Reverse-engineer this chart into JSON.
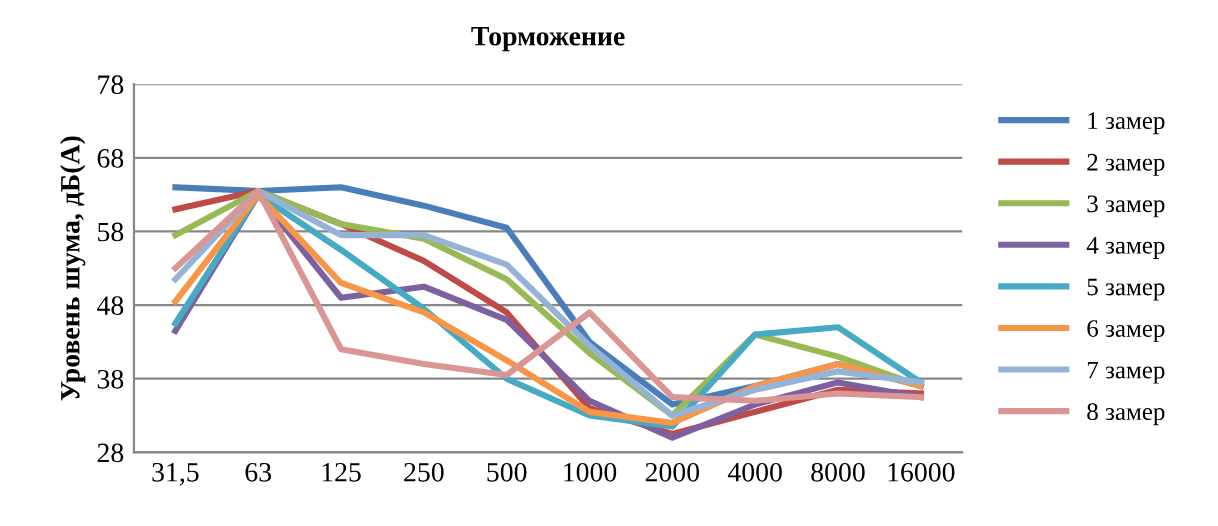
{
  "chart_data": {
    "type": "line",
    "title": "Торможение",
    "ylabel": "Уровень шума, дБ(А)",
    "categories": [
      "31,5",
      "63",
      "125",
      "250",
      "500",
      "1000",
      "2000",
      "4000",
      "8000",
      "16000"
    ],
    "ylim": [
      28,
      78
    ],
    "yticks": [
      28,
      38,
      48,
      58,
      68,
      78
    ],
    "grid": "y",
    "legend": "right",
    "marker": "none",
    "line_style": "solid",
    "series": [
      {
        "name": "1 замер",
        "color": "#4a7ebb",
        "values": [
          64,
          63.5,
          64,
          61.5,
          58.5,
          43,
          34.5,
          37,
          40,
          37
        ]
      },
      {
        "name": "2 замер",
        "color": "#be4b48",
        "values": [
          61,
          63.5,
          59,
          54,
          47,
          34,
          30.5,
          33.5,
          36.5,
          36
        ]
      },
      {
        "name": "3 замер",
        "color": "#98b954",
        "values": [
          57.5,
          63.5,
          59,
          57,
          51.5,
          41.5,
          33,
          44,
          41,
          37
        ]
      },
      {
        "name": "4 замер",
        "color": "#7d60a0",
        "values": [
          44.5,
          63,
          49,
          50.5,
          46,
          35,
          30,
          34.5,
          37.5,
          35.5
        ]
      },
      {
        "name": "5 замер",
        "color": "#46aac5",
        "values": [
          45.5,
          63,
          55.5,
          47.5,
          38,
          33,
          31.5,
          44,
          45,
          37.5
        ]
      },
      {
        "name": "6 замер",
        "color": "#f79646",
        "values": [
          48.5,
          63,
          51,
          47,
          40.5,
          33.5,
          32,
          37,
          40,
          37
        ]
      },
      {
        "name": "7 замер",
        "color": "#95b3d7",
        "values": [
          51.5,
          63.5,
          57.5,
          57.5,
          53.5,
          42.5,
          33,
          36.5,
          39,
          37.5
        ]
      },
      {
        "name": "8 замер",
        "color": "#d99694",
        "values": [
          53,
          63.5,
          42,
          40,
          38.5,
          47,
          35.5,
          35,
          36,
          35.5
        ]
      }
    ]
  }
}
